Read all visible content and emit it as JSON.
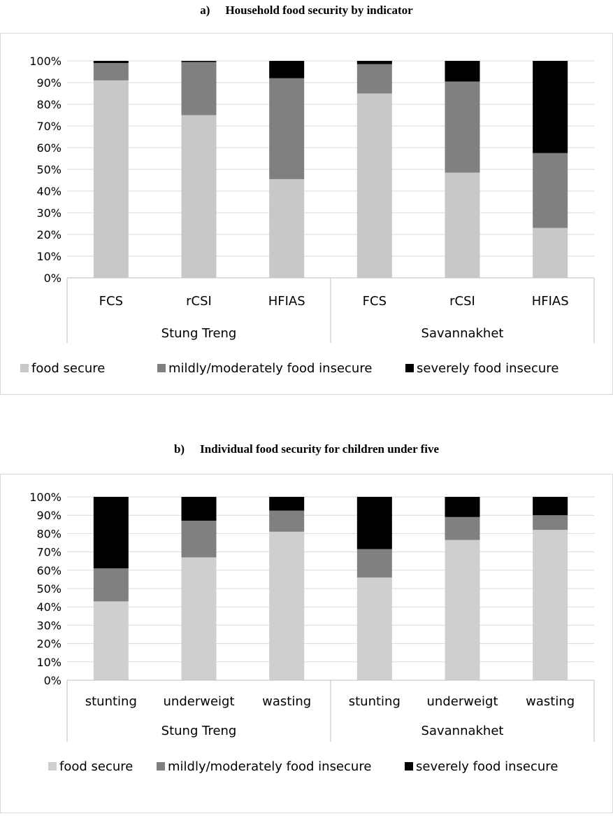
{
  "chart_data": [
    {
      "type": "bar",
      "stacked": true,
      "title_label": "a)",
      "title": "Household food security by indicator",
      "groups": [
        "Stung Treng",
        "Savannakhet"
      ],
      "categories": [
        "FCS",
        "rCSI",
        "HFIAS",
        "FCS",
        "rCSI",
        "HFIAS"
      ],
      "y_ticks": [
        "0%",
        "10%",
        "20%",
        "30%",
        "40%",
        "50%",
        "60%",
        "70%",
        "80%",
        "90%",
        "100%"
      ],
      "ylim": [
        0,
        100
      ],
      "grid": true,
      "legend_position": "bottom",
      "series": [
        {
          "name": "food secure",
          "color": "#c8c8c8",
          "values": [
            91,
            75,
            45.5,
            85,
            48.5,
            23
          ]
        },
        {
          "name": "mildly/moderately food insecure",
          "color": "#808080",
          "values": [
            8,
            24.5,
            46.5,
            13.5,
            42,
            34.5
          ]
        },
        {
          "name": "severely food insecure",
          "color": "#000000",
          "values": [
            1,
            0.5,
            8,
            1.5,
            9.5,
            42.5
          ]
        }
      ]
    },
    {
      "type": "bar",
      "stacked": true,
      "title_label": "b)",
      "title": "Individual food security for children under five",
      "groups": [
        "Stung Treng",
        "Savannakhet"
      ],
      "categories": [
        "stunting",
        "underweigt",
        "wasting",
        "stunting",
        "underweigt",
        "wasting"
      ],
      "y_ticks": [
        "0%",
        "10%",
        "20%",
        "30%",
        "40%",
        "50%",
        "60%",
        "70%",
        "80%",
        "90%",
        "100%"
      ],
      "ylim": [
        0,
        100
      ],
      "grid": true,
      "legend_position": "bottom",
      "series": [
        {
          "name": "food secure",
          "color": "#d0ced0",
          "values": [
            43,
            67,
            81,
            56,
            76.5,
            82
          ]
        },
        {
          "name": "mildly/moderately food insecure",
          "color": "#808080",
          "values": [
            18,
            20,
            11.5,
            15.5,
            12.5,
            8
          ]
        },
        {
          "name": "severely food insecure",
          "color": "#000000",
          "values": [
            39,
            13,
            7.5,
            28.5,
            11,
            10
          ]
        }
      ]
    }
  ]
}
